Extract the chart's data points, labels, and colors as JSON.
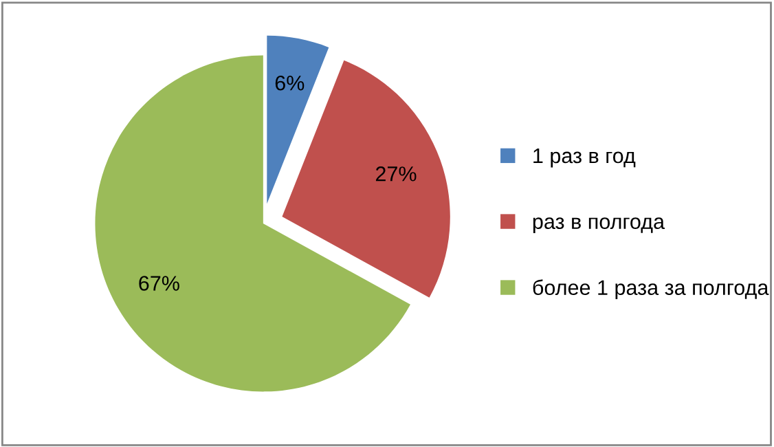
{
  "chart_data": {
    "type": "pie",
    "categories": [
      "1 раз в год",
      "раз в полгода",
      "более 1 раза за полгода"
    ],
    "values": [
      6,
      27,
      67
    ],
    "colors": [
      "#4f81bd",
      "#c0504d",
      "#9bbb59"
    ],
    "value_labels": [
      "6%",
      "27%",
      "67%"
    ],
    "legend": "right"
  }
}
